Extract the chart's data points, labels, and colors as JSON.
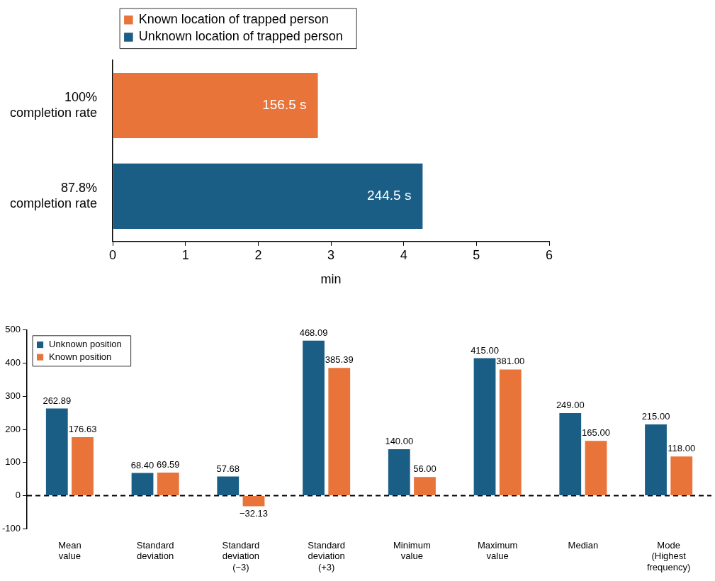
{
  "chart_data": [
    {
      "type": "bar",
      "orientation": "horizontal",
      "categories": [
        "100%\ncompletion rate",
        "87.8%\ncompletion rate"
      ],
      "series": [
        {
          "name": "Known location of trapped person",
          "color": "#e8743a",
          "values": [
            2.82,
            null
          ]
        },
        {
          "name": "Unknown location of trapped person",
          "color": "#1a5e86",
          "values": [
            null,
            4.26
          ]
        }
      ],
      "annotations": [
        {
          "text": "156.5 s",
          "x": 2.82,
          "y": "100%\ncompletion rate"
        },
        {
          "text": "244.5 s",
          "x": 4.26,
          "y": "87.8%\ncompletion rate"
        }
      ],
      "xlabel": "min",
      "xlim": [
        0,
        6
      ],
      "xticks": [
        0,
        1,
        2,
        3,
        4,
        5,
        6
      ],
      "grid": false,
      "legend": "top"
    },
    {
      "type": "bar",
      "categories": [
        "Mean\nvalue",
        "Standard\ndeviation",
        "Standard\ndeviation\n(−3)",
        "Standard\ndeviation\n(+3)",
        "Minimum\nvalue",
        "Maximum\nvalue",
        "Median",
        "Mode\n(Highest\nfrequency)"
      ],
      "series": [
        {
          "name": "Unknown position",
          "color": "#1a5e86",
          "values": [
            262.89,
            68.4,
            57.68,
            468.09,
            140.0,
            415.0,
            249.0,
            215.0
          ],
          "value_labels": [
            "262.89",
            "68.40",
            "57.68",
            "468.09",
            "140.00",
            "415.00",
            "249.00",
            "215.00"
          ]
        },
        {
          "name": "Known position",
          "color": "#e8743a",
          "values": [
            176.63,
            69.59,
            -32.13,
            385.39,
            56.0,
            381.0,
            165.0,
            118.0
          ],
          "value_labels": [
            "176.63",
            "69.59",
            "−32.13",
            "385.39",
            "56.00",
            "381.00",
            "165.00",
            "118.00"
          ]
        }
      ],
      "ylim": [
        -100,
        500
      ],
      "yticks": [
        -100,
        0,
        100,
        200,
        300,
        400,
        500
      ],
      "grid": false,
      "legend": "top left",
      "ref_lines": [
        {
          "axis": "y",
          "value": 0,
          "color": "#000000",
          "line_style": "dashed"
        }
      ]
    }
  ]
}
